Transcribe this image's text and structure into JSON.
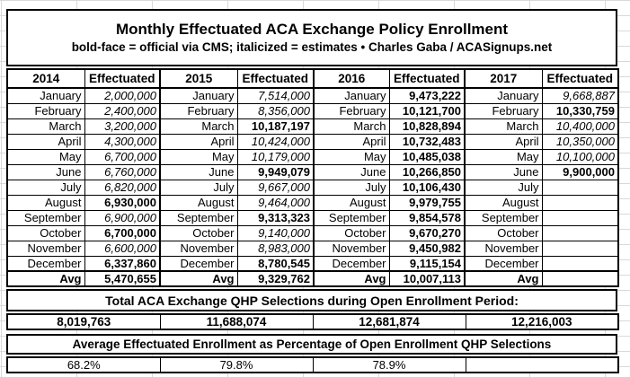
{
  "colors": {
    "background": "#ffffff",
    "grid_line": "#d9d9d9",
    "table_border": "#000000",
    "text": "#000000"
  },
  "header_box": {
    "title": "Monthly Effectuated ACA Exchange Policy Enrollment",
    "subtitle": "bold-face = official via CMS; italicized = estimates  •  Charles Gaba / ACASignups.net"
  },
  "table": {
    "column_headers": [
      "2014",
      "Effectuated",
      "2015",
      "Effectuated",
      "2016",
      "Effectuated",
      "2017",
      "Effectuated"
    ],
    "rows": [
      {
        "month": "January",
        "values": [
          {
            "t": "2,000,000",
            "s": "est"
          },
          {
            "t": "7,514,000",
            "s": "est"
          },
          {
            "t": "9,473,222",
            "s": "cms"
          },
          {
            "t": "9,668,887",
            "s": "est"
          }
        ]
      },
      {
        "month": "February",
        "values": [
          {
            "t": "2,400,000",
            "s": "est"
          },
          {
            "t": "8,356,000",
            "s": "est"
          },
          {
            "t": "10,121,700",
            "s": "cms"
          },
          {
            "t": "10,330,759",
            "s": "cms"
          }
        ]
      },
      {
        "month": "March",
        "values": [
          {
            "t": "3,200,000",
            "s": "est"
          },
          {
            "t": "10,187,197",
            "s": "cms"
          },
          {
            "t": "10,828,894",
            "s": "cms"
          },
          {
            "t": "10,400,000",
            "s": "est"
          }
        ]
      },
      {
        "month": "April",
        "values": [
          {
            "t": "4,300,000",
            "s": "est"
          },
          {
            "t": "10,424,000",
            "s": "est"
          },
          {
            "t": "10,732,483",
            "s": "cms"
          },
          {
            "t": "10,350,000",
            "s": "est"
          }
        ]
      },
      {
        "month": "May",
        "values": [
          {
            "t": "6,700,000",
            "s": "est"
          },
          {
            "t": "10,179,000",
            "s": "est"
          },
          {
            "t": "10,485,038",
            "s": "cms"
          },
          {
            "t": "10,100,000",
            "s": "est"
          }
        ]
      },
      {
        "month": "June",
        "values": [
          {
            "t": "6,760,000",
            "s": "est"
          },
          {
            "t": "9,949,079",
            "s": "cms"
          },
          {
            "t": "10,266,850",
            "s": "cms"
          },
          {
            "t": "9,900,000",
            "s": "cms"
          }
        ]
      },
      {
        "month": "July",
        "values": [
          {
            "t": "6,820,000",
            "s": "est"
          },
          {
            "t": "9,667,000",
            "s": "est"
          },
          {
            "t": "10,106,430",
            "s": "cms"
          },
          {
            "t": "",
            "s": "none"
          }
        ]
      },
      {
        "month": "August",
        "values": [
          {
            "t": "6,930,000",
            "s": "cms"
          },
          {
            "t": "9,464,000",
            "s": "est"
          },
          {
            "t": "9,979,755",
            "s": "cms"
          },
          {
            "t": "",
            "s": "none"
          }
        ]
      },
      {
        "month": "September",
        "values": [
          {
            "t": "6,900,000",
            "s": "est"
          },
          {
            "t": "9,313,323",
            "s": "cms"
          },
          {
            "t": "9,854,578",
            "s": "cms"
          },
          {
            "t": "",
            "s": "none"
          }
        ]
      },
      {
        "month": "October",
        "values": [
          {
            "t": "6,700,000",
            "s": "cms"
          },
          {
            "t": "9,140,000",
            "s": "est"
          },
          {
            "t": "9,670,270",
            "s": "cms"
          },
          {
            "t": "",
            "s": "none"
          }
        ]
      },
      {
        "month": "November",
        "values": [
          {
            "t": "6,600,000",
            "s": "est"
          },
          {
            "t": "8,983,000",
            "s": "est"
          },
          {
            "t": "9,450,982",
            "s": "cms"
          },
          {
            "t": "",
            "s": "none"
          }
        ]
      },
      {
        "month": "December",
        "values": [
          {
            "t": "6,337,860",
            "s": "cms"
          },
          {
            "t": "8,780,545",
            "s": "cms"
          },
          {
            "t": "9,115,154",
            "s": "cms"
          },
          {
            "t": "",
            "s": "none"
          }
        ]
      },
      {
        "month": "Avg",
        "avg": true,
        "values": [
          {
            "t": "5,470,655",
            "s": "cms"
          },
          {
            "t": "9,329,762",
            "s": "cms"
          },
          {
            "t": "10,007,113",
            "s": "cms"
          },
          {
            "t": "",
            "s": "none"
          }
        ]
      }
    ]
  },
  "totals": {
    "heading": "Total ACA Exchange QHP Selections during Open Enrollment Period:",
    "values": [
      "8,019,763",
      "11,688,074",
      "12,681,874",
      "12,216,003"
    ]
  },
  "percentages": {
    "heading": "Average Effectuated Enrollment as Percentage of Open Enrollment QHP Selections",
    "values": [
      "68.2%",
      "79.8%",
      "78.9%",
      ""
    ]
  },
  "chart_data": {
    "type": "table",
    "title": "Monthly Effectuated ACA Exchange Policy Enrollment",
    "subtitle": "bold-face = official via CMS; italicized = estimates • Charles Gaba / ACASignups.net",
    "categories": [
      "January",
      "February",
      "March",
      "April",
      "May",
      "June",
      "July",
      "August",
      "September",
      "October",
      "November",
      "December"
    ],
    "series": [
      {
        "name": "2014",
        "values": [
          2000000,
          2400000,
          3200000,
          4300000,
          6700000,
          6760000,
          6820000,
          6930000,
          6900000,
          6700000,
          6600000,
          6337860
        ],
        "official_via_cms": [
          false,
          false,
          false,
          false,
          false,
          false,
          false,
          true,
          false,
          true,
          false,
          true
        ],
        "avg": 5470655,
        "open_enrollment_qhp_selections": 8019763,
        "avg_pct_of_selections": 68.2
      },
      {
        "name": "2015",
        "values": [
          7514000,
          8356000,
          10187197,
          10424000,
          10179000,
          9949079,
          9667000,
          9464000,
          9313323,
          9140000,
          8983000,
          8780545
        ],
        "official_via_cms": [
          false,
          false,
          true,
          false,
          false,
          true,
          false,
          false,
          true,
          false,
          false,
          true
        ],
        "avg": 9329762,
        "open_enrollment_qhp_selections": 11688074,
        "avg_pct_of_selections": 79.8
      },
      {
        "name": "2016",
        "values": [
          9473222,
          10121700,
          10828894,
          10732483,
          10485038,
          10266850,
          10106430,
          9979755,
          9854578,
          9670270,
          9450982,
          9115154
        ],
        "official_via_cms": [
          true,
          true,
          true,
          true,
          true,
          true,
          true,
          true,
          true,
          true,
          true,
          true
        ],
        "avg": 10007113,
        "open_enrollment_qhp_selections": 12681874,
        "avg_pct_of_selections": 78.9
      },
      {
        "name": "2017",
        "values": [
          9668887,
          10330759,
          10400000,
          10350000,
          10100000,
          9900000,
          null,
          null,
          null,
          null,
          null,
          null
        ],
        "official_via_cms": [
          false,
          true,
          false,
          false,
          false,
          true,
          null,
          null,
          null,
          null,
          null,
          null
        ],
        "avg": null,
        "open_enrollment_qhp_selections": 12216003,
        "avg_pct_of_selections": null
      }
    ]
  }
}
